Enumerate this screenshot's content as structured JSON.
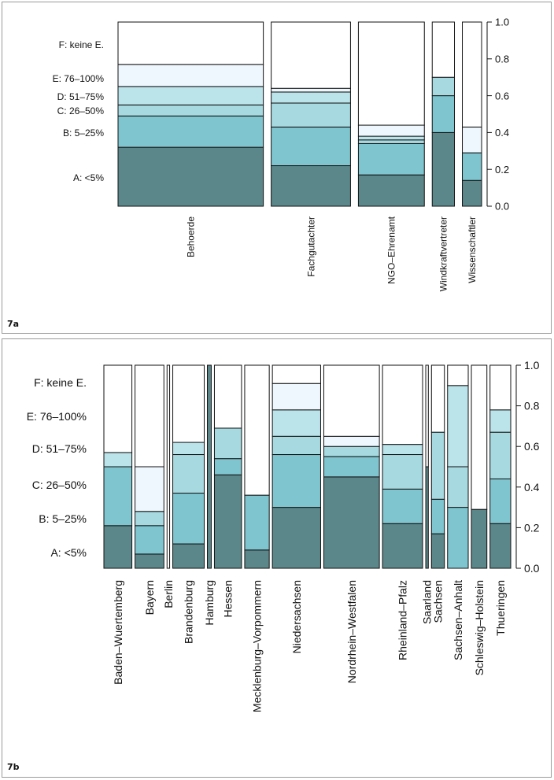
{
  "figure_labels": {
    "a": "7a",
    "b": "7b"
  },
  "colors": {
    "A": "#5b878a",
    "B": "#7ec5cf",
    "C": "#a7d9e1",
    "D": "#bbe3ea",
    "E": "#eef7fd",
    "F": "#ffffff",
    "outline": "#111111"
  },
  "chart_data": [
    {
      "type": "bar",
      "subtype": "mosaic-stacked-proportions",
      "panel": "7a",
      "level_keys": [
        "A",
        "B",
        "C",
        "D",
        "E",
        "F"
      ],
      "levels": [
        "A: <5%",
        "B: 5–25%",
        "C: 26–50%",
        "D: 51–75%",
        "E: 76–100%",
        "F: keine E."
      ],
      "ytick_labels": [
        "0.0",
        "0.2",
        "0.4",
        "0.6",
        "0.8",
        "1.0"
      ],
      "ylim": [
        0,
        1
      ],
      "y_axis_position": "right",
      "categories": [
        "Behoerde",
        "Fachgutachter",
        "NGO–Ehrenamt",
        "Windkraftvertreter",
        "Wissenschaftler"
      ],
      "widths": [
        0.392,
        0.214,
        0.178,
        0.06,
        0.052
      ],
      "series": [
        {
          "key": "A",
          "values": [
            0.32,
            0.22,
            0.17,
            0.4,
            0.14
          ]
        },
        {
          "key": "B",
          "values": [
            0.17,
            0.21,
            0.17,
            0.2,
            0.15
          ]
        },
        {
          "key": "C",
          "values": [
            0.06,
            0.13,
            0.02,
            0.1,
            0.0
          ]
        },
        {
          "key": "D",
          "values": [
            0.1,
            0.06,
            0.02,
            0.0,
            0.0
          ]
        },
        {
          "key": "E",
          "values": [
            0.12,
            0.02,
            0.06,
            0.0,
            0.14
          ]
        },
        {
          "key": "F",
          "values": [
            0.23,
            0.36,
            0.56,
            0.3,
            0.57
          ]
        }
      ]
    },
    {
      "type": "bar",
      "subtype": "mosaic-stacked-proportions",
      "panel": "7b",
      "level_keys": [
        "A",
        "B",
        "C",
        "D",
        "E",
        "F"
      ],
      "levels": [
        "A: <5%",
        "B: 5–25%",
        "C: 26–50%",
        "D: 51–75%",
        "E: 76–100%",
        "F: keine E."
      ],
      "ytick_labels": [
        "0.0",
        "0.2",
        "0.4",
        "0.6",
        "0.8",
        "1.0"
      ],
      "ylim": [
        0,
        1
      ],
      "y_axis_position": "right",
      "categories": [
        "Baden–Wuertemberg",
        "Bayern",
        "Berlin",
        "Brandenburg",
        "Hamburg",
        "Hessen",
        "Mecklenburg–Vorpommern",
        "Niedersachsen",
        "Nordrhein–Westfalen",
        "Rheinland–Pfalz",
        "Saarland",
        "Sachsen",
        "Sachsen–Anhalt",
        "Schleswig–Holstein",
        "Thueringen"
      ],
      "widths": [
        0.065,
        0.067,
        0.006,
        0.073,
        0.009,
        0.063,
        0.057,
        0.112,
        0.129,
        0.093,
        0.006,
        0.03,
        0.048,
        0.036,
        0.048
      ],
      "series": [
        {
          "key": "A",
          "values": [
            0.21,
            0.07,
            0.0,
            0.12,
            1.0,
            0.46,
            0.09,
            0.3,
            0.45,
            0.22,
            0.5,
            0.17,
            0.0,
            0.29,
            0.22
          ]
        },
        {
          "key": "B",
          "values": [
            0.29,
            0.14,
            0.0,
            0.25,
            0.0,
            0.08,
            0.27,
            0.26,
            0.1,
            0.17,
            0.0,
            0.17,
            0.3,
            0.0,
            0.22
          ]
        },
        {
          "key": "C",
          "values": [
            0.0,
            0.07,
            0.0,
            0.19,
            0.0,
            0.15,
            0.0,
            0.09,
            0.05,
            0.17,
            0.0,
            0.33,
            0.2,
            0.0,
            0.23
          ]
        },
        {
          "key": "D",
          "values": [
            0.07,
            0.0,
            0.0,
            0.06,
            0.0,
            0.0,
            0.0,
            0.13,
            0.0,
            0.05,
            0.0,
            0.0,
            0.4,
            0.0,
            0.11
          ]
        },
        {
          "key": "E",
          "values": [
            0.0,
            0.22,
            0.0,
            0.0,
            0.0,
            0.0,
            0.0,
            0.13,
            0.05,
            0.0,
            0.0,
            0.0,
            0.0,
            0.0,
            0.0
          ]
        },
        {
          "key": "F",
          "values": [
            0.43,
            0.5,
            1.0,
            0.38,
            0.0,
            0.31,
            0.64,
            0.09,
            0.35,
            0.39,
            0.5,
            0.33,
            0.1,
            0.71,
            0.22
          ]
        }
      ]
    }
  ]
}
